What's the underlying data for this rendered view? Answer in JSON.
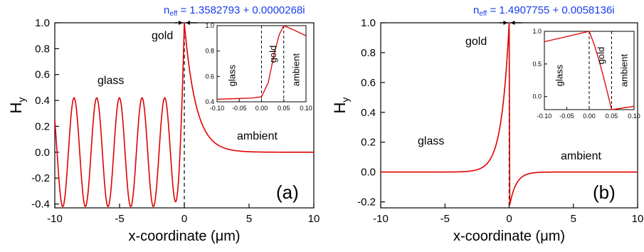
{
  "chart_data": [
    {
      "id": "a",
      "type": "line",
      "title": "n_eff = 1.3582793 + 0.0000268i",
      "title_parts": {
        "base": "n",
        "sub": "eff",
        "rest": " = 1.3582793 + 0.0000268i"
      },
      "xlabel": "x-coordinate (μm)",
      "ylabel": "H",
      "ylabel_sub": "y",
      "xlim": [
        -10,
        10
      ],
      "ylim": [
        -0.43,
        1.0
      ],
      "xticks": [
        -10,
        -5,
        0,
        5,
        10
      ],
      "yticks": [
        -0.4,
        -0.2,
        0.0,
        0.2,
        0.4,
        0.6,
        0.8,
        1.0
      ],
      "xtick_labels": [
        "-10",
        "-5",
        "0",
        "5",
        "10"
      ],
      "ytick_labels": [
        "-0.4",
        "-0.2",
        "0.0",
        "0.2",
        "0.4",
        "0.6",
        "0.8",
        "1.0"
      ],
      "panel_label": "(a)",
      "region_labels": [
        "glass",
        "gold",
        "ambient"
      ],
      "series": [
        {
          "color": "#e00000",
          "profile": "oscillatory",
          "oscillation_amplitude": 0.42,
          "oscillation_period_um": 1.75,
          "peak_x": 0.0,
          "peak_value": 1.0,
          "decay_length_um": 0.9,
          "ambient_floor": 0.0
        }
      ],
      "gold_interface_x": 0.0,
      "inset": {
        "xlim": [
          -0.1,
          0.1
        ],
        "ylim": [
          0.4,
          1.0
        ],
        "xticks": [
          -0.1,
          -0.05,
          0.0,
          0.05,
          0.1
        ],
        "yticks": [
          0.4,
          0.6,
          0.8,
          1.0
        ],
        "xtick_labels": [
          "-0.10",
          "-0.05",
          "0.00",
          "0.05",
          "0.10"
        ],
        "ytick_labels": [
          "0.4",
          "0.6",
          "0.8",
          "1.0"
        ],
        "interfaces": [
          0.0,
          0.05
        ],
        "labels": [
          "glass",
          "gold",
          "ambient"
        ],
        "x": [
          -0.1,
          -0.06,
          -0.02,
          0.0,
          0.015,
          0.03,
          0.04,
          0.05,
          0.07,
          0.1
        ],
        "y": [
          0.42,
          0.425,
          0.43,
          0.44,
          0.55,
          0.8,
          0.93,
          1.0,
          0.97,
          0.92
        ]
      }
    },
    {
      "id": "b",
      "type": "line",
      "title": "n_eff = 1.4907755 + 0.0058136i",
      "title_parts": {
        "base": "n",
        "sub": "eff",
        "rest": " = 1.4907755 + 0.0058136i"
      },
      "xlabel": "x-coordinate (μm)",
      "ylabel": "H",
      "ylabel_sub": "y",
      "xlim": [
        -10,
        10
      ],
      "ylim": [
        -0.24,
        1.0
      ],
      "xticks": [
        -10,
        -5,
        0,
        5,
        10
      ],
      "yticks": [
        -0.2,
        0.0,
        0.2,
        0.4,
        0.6,
        0.8,
        1.0
      ],
      "xtick_labels": [
        "-10",
        "-5",
        "0",
        "5",
        "10"
      ],
      "ytick_labels": [
        "-0.2",
        "0.0",
        "0.2",
        "0.4",
        "0.6",
        "0.8",
        "1.0"
      ],
      "panel_label": "(b)",
      "region_labels": [
        "glass",
        "gold",
        "ambient"
      ],
      "series": [
        {
          "color": "#e00000",
          "profile": "plasmonic",
          "peak_x": 0.0,
          "peak_value": 1.0,
          "min_x": 0.05,
          "min_value": -0.22,
          "decay_length_glass_um": 0.6,
          "decay_length_ambient_um": 0.5
        }
      ],
      "gold_interface_x": 0.0,
      "inset": {
        "xlim": [
          -0.1,
          0.1
        ],
        "ylim": [
          -0.2,
          1.0
        ],
        "xticks": [
          -0.1,
          -0.05,
          0.0,
          0.05,
          0.1
        ],
        "yticks": [
          0.0,
          0.5,
          1.0
        ],
        "xtick_labels": [
          "-0.10",
          "-0.05",
          "0.00",
          "0.05",
          "0.10"
        ],
        "ytick_labels": [
          "0.0",
          "0.5",
          "1.0"
        ],
        "interfaces": [
          0.0,
          0.05
        ],
        "labels": [
          "glass",
          "gold",
          "ambient"
        ],
        "x": [
          -0.1,
          -0.05,
          0.0,
          0.01,
          0.02,
          0.03,
          0.04,
          0.05,
          0.07,
          0.1
        ],
        "y": [
          0.84,
          0.92,
          1.0,
          0.82,
          0.6,
          0.35,
          0.08,
          -0.2,
          -0.18,
          -0.15
        ]
      }
    }
  ]
}
